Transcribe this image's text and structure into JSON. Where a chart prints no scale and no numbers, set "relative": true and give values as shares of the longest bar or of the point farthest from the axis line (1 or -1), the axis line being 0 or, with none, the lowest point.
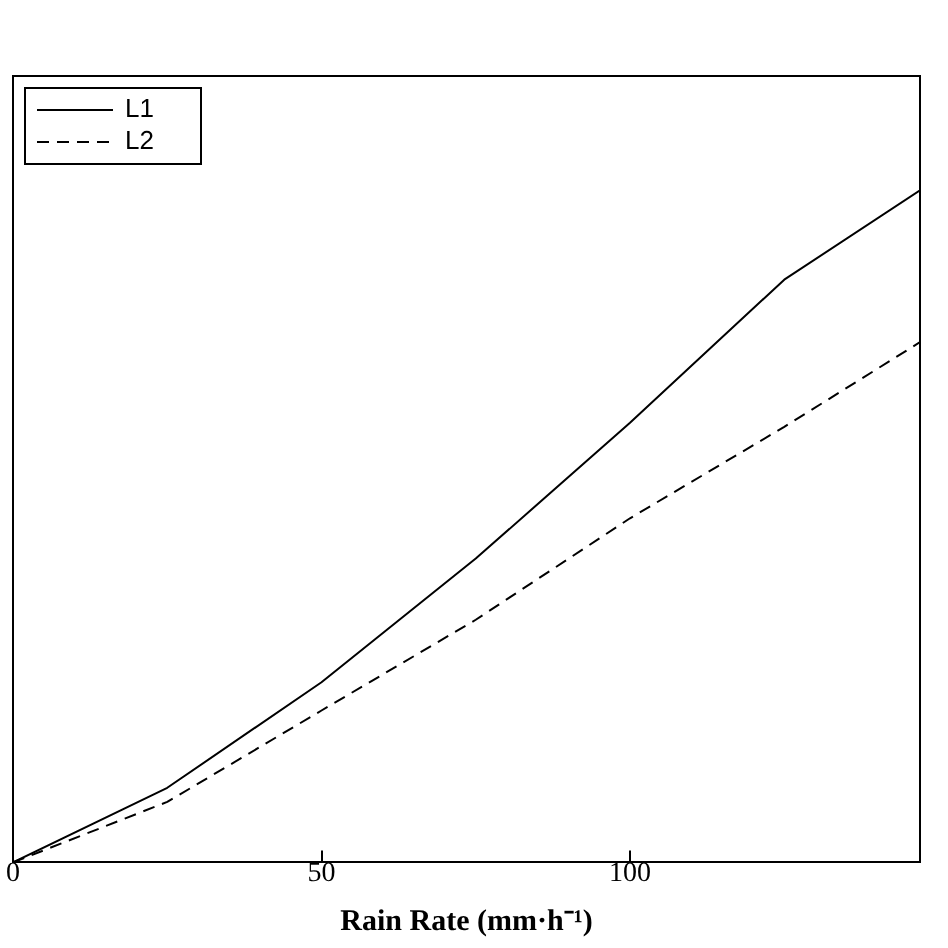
{
  "chart_data": {
    "type": "line",
    "xlabel": "Rain Rate (mm·h⁻¹)",
    "relative": true,
    "xlim": [
      0,
      147
    ],
    "xticks": [
      0,
      50,
      100
    ],
    "x": [
      0,
      25,
      50,
      75,
      100,
      125,
      147
    ],
    "legend": "top left",
    "grid": false,
    "marker": "none",
    "series": [
      {
        "name": "L1",
        "color": "#000000",
        "line_style": "solid",
        "values": [
          0,
          0.111,
          0.268,
          0.452,
          0.654,
          0.867,
          1
        ]
      },
      {
        "name": "L2",
        "color": "#000000",
        "line_style": "dashed",
        "values": [
          0,
          0.09,
          0.226,
          0.361,
          0.512,
          0.648,
          0.774
        ]
      }
    ]
  }
}
